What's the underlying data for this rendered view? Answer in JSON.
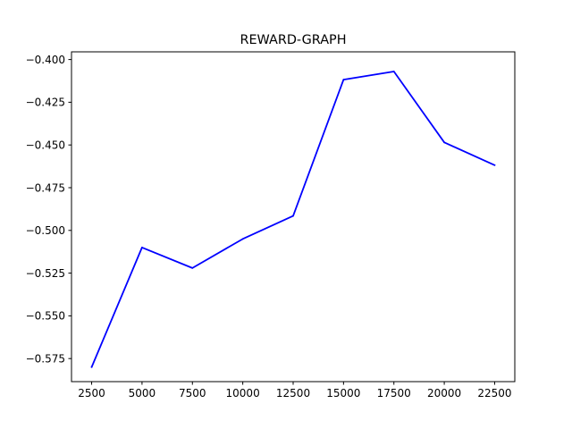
{
  "chart_data": {
    "type": "line",
    "title": "REWARD-GRAPH",
    "xlabel": "",
    "ylabel": "",
    "xlim": [
      1500,
      23500
    ],
    "ylim": [
      -0.5885,
      -0.3955
    ],
    "xticks": [
      2500,
      5000,
      7500,
      10000,
      12500,
      15000,
      17500,
      20000,
      22500
    ],
    "yticks": [
      -0.575,
      -0.55,
      -0.525,
      -0.5,
      -0.475,
      -0.45,
      -0.425,
      -0.4
    ],
    "xtick_labels": [
      "2500",
      "5000",
      "7500",
      "10000",
      "12500",
      "15000",
      "17500",
      "20000",
      "22500"
    ],
    "ytick_labels": [
      "−0.575",
      "−0.550",
      "−0.525",
      "−0.500",
      "−0.475",
      "−0.450",
      "−0.425",
      "−0.400"
    ],
    "grid": false,
    "series": [
      {
        "color": "#0000ff",
        "x": [
          2500,
          5000,
          7500,
          10000,
          12500,
          15000,
          17500,
          20000,
          22500
        ],
        "y": [
          -0.58,
          -0.51,
          -0.522,
          -0.505,
          -0.4915,
          -0.4118,
          -0.407,
          -0.4485,
          -0.4618
        ]
      }
    ]
  }
}
